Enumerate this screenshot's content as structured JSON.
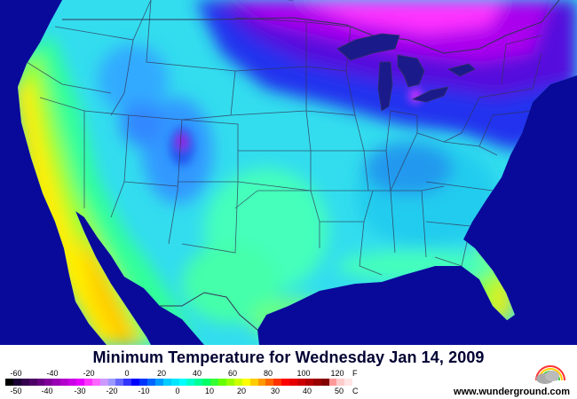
{
  "title": "Minimum Temperature for Wednesday Jan 14, 2009",
  "scale": {
    "fahrenheit_labels": [
      "-60",
      "-40",
      "-20",
      "0",
      "20",
      "40",
      "60",
      "80",
      "100",
      "120"
    ],
    "celsius_labels": [
      "-50",
      "-40",
      "-30",
      "-20",
      "-10",
      "0",
      "10",
      "20",
      "30",
      "40",
      "50"
    ],
    "f_unit": "F",
    "c_unit": "C",
    "colors": [
      "#000000",
      "#1a0033",
      "#33004d",
      "#4d0066",
      "#660080",
      "#800099",
      "#9900b3",
      "#b300cc",
      "#cc00e6",
      "#e600ff",
      "#ff33ff",
      "#ff66ff",
      "#cc99ff",
      "#9999ff",
      "#6666ff",
      "#3333ff",
      "#0000ff",
      "#0033ff",
      "#0066ff",
      "#0099ff",
      "#00ccff",
      "#00e6ff",
      "#00ffff",
      "#00ffcc",
      "#00ff99",
      "#00ff66",
      "#33ff33",
      "#66ff00",
      "#99ff00",
      "#ccff00",
      "#ffff00",
      "#ffcc00",
      "#ff9900",
      "#ff6600",
      "#ff3300",
      "#ff0000",
      "#e60000",
      "#cc0000",
      "#b30000",
      "#990000",
      "#800000",
      "#ff9999",
      "#ffcccc",
      "#ffe6e6"
    ]
  },
  "brand": "www.wunderground.com",
  "logo_icon": "rainbow-cloud-icon",
  "colors": {
    "ocean": "#0a0a9a",
    "border": "#333355"
  }
}
